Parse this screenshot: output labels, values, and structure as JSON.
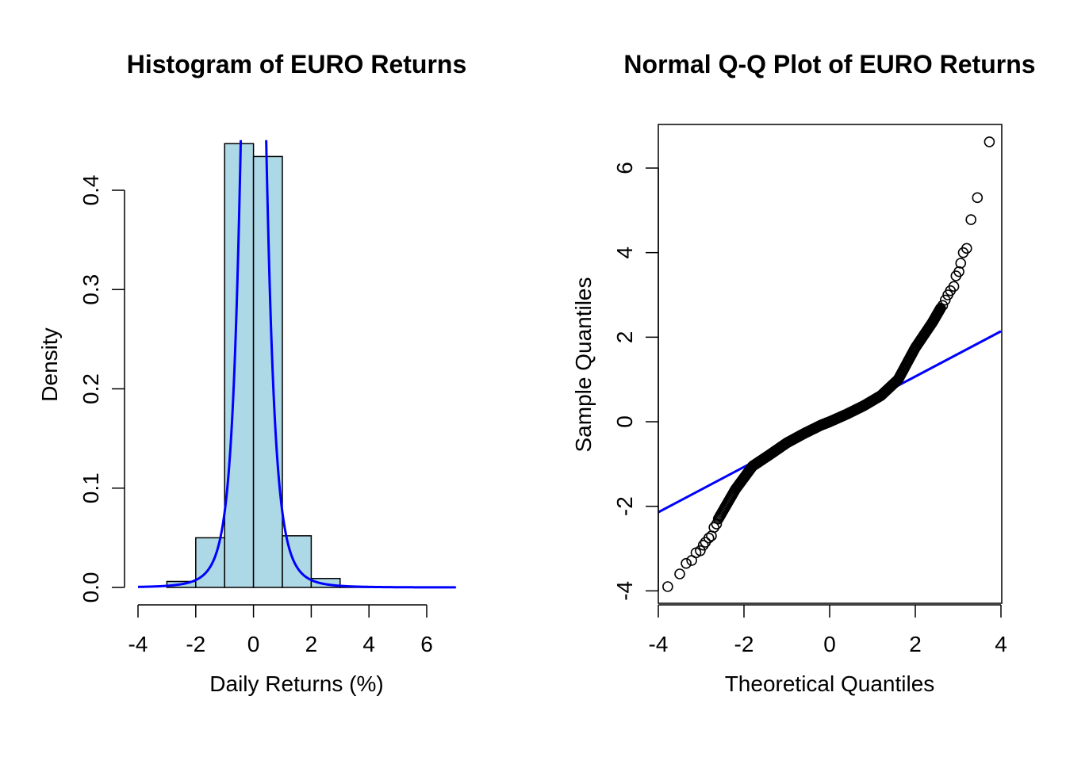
{
  "chart_data": [
    {
      "type": "bar",
      "title": "Histogram of EURO Returns",
      "xlabel": "Daily Returns (%)",
      "ylabel": "Density",
      "xlim": [
        -4,
        7
      ],
      "ylim": [
        0,
        0.45
      ],
      "xticks": [
        "-4",
        "-2",
        "0",
        "2",
        "4",
        "6"
      ],
      "yticks": [
        "0.0",
        "0.1",
        "0.2",
        "0.3",
        "0.4"
      ],
      "bins": [
        {
          "from": -3,
          "to": -2,
          "density": 0.006
        },
        {
          "from": -2,
          "to": -1,
          "density": 0.05
        },
        {
          "from": -1,
          "to": 0,
          "density": 0.447
        },
        {
          "from": 0,
          "to": 1,
          "density": 0.434
        },
        {
          "from": 1,
          "to": 2,
          "density": 0.052
        },
        {
          "from": 2,
          "to": 3,
          "density": 0.009
        },
        {
          "from": 3,
          "to": 4,
          "density": 0.001
        },
        {
          "from": 4,
          "to": 5,
          "density": 0.0003
        },
        {
          "from": 5,
          "to": 6,
          "density": 0.0001
        },
        {
          "from": 6,
          "to": 7,
          "density": 0.0001
        }
      ],
      "bar_color": "#ADD8E6",
      "density_curve": {
        "color": "#0000FF",
        "type": "fitted density"
      }
    },
    {
      "type": "scatter",
      "title": "Normal Q-Q Plot of EURO Returns",
      "xlabel": "Theoretical Quantiles",
      "ylabel": "Sample Quantiles",
      "xlim": [
        -4,
        4
      ],
      "ylim": [
        -4,
        6.6
      ],
      "xticks": [
        "-4",
        "-2",
        "0",
        "2",
        "4"
      ],
      "yticks": [
        "-4",
        "-2",
        "0",
        "2",
        "4",
        "6"
      ],
      "points_tail_low": [
        [
          -3.78,
          -3.9
        ],
        [
          -3.5,
          -3.6
        ],
        [
          -3.35,
          -3.35
        ],
        [
          -3.22,
          -3.28
        ],
        [
          -3.12,
          -3.1
        ],
        [
          -3.02,
          -3.05
        ],
        [
          -2.95,
          -2.92
        ],
        [
          -2.9,
          -2.85
        ],
        [
          -2.82,
          -2.75
        ],
        [
          -2.76,
          -2.7
        ],
        [
          -2.7,
          -2.5
        ],
        [
          -2.64,
          -2.42
        ]
      ],
      "points_tail_high": [
        [
          2.64,
          2.75
        ],
        [
          2.7,
          2.88
        ],
        [
          2.76,
          3.0
        ],
        [
          2.82,
          3.1
        ],
        [
          2.9,
          3.2
        ],
        [
          2.95,
          3.45
        ],
        [
          3.02,
          3.55
        ],
        [
          3.06,
          3.75
        ],
        [
          3.12,
          4.0
        ],
        [
          3.2,
          4.1
        ],
        [
          3.3,
          4.78
        ],
        [
          3.45,
          5.3
        ],
        [
          3.73,
          6.62
        ]
      ],
      "body_curve": [
        [
          -2.6,
          -2.3
        ],
        [
          -2.2,
          -1.6
        ],
        [
          -1.8,
          -1.05
        ],
        [
          -1.4,
          -0.78
        ],
        [
          -1.0,
          -0.5
        ],
        [
          -0.6,
          -0.28
        ],
        [
          -0.2,
          -0.08
        ],
        [
          0.0,
          0.0
        ],
        [
          0.4,
          0.18
        ],
        [
          0.8,
          0.38
        ],
        [
          1.2,
          0.62
        ],
        [
          1.6,
          1.0
        ],
        [
          2.0,
          1.75
        ],
        [
          2.4,
          2.35
        ],
        [
          2.6,
          2.7
        ]
      ],
      "reference_line": {
        "intercept": 0.0,
        "slope": 0.535,
        "color": "#0000FF"
      },
      "marker": "open circle"
    }
  ]
}
